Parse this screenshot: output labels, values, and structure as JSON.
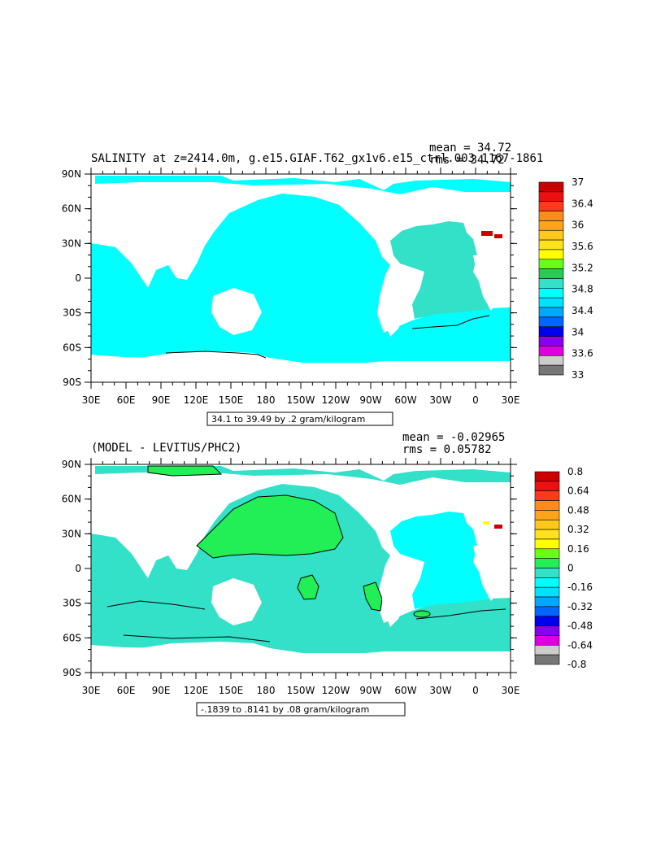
{
  "panels": [
    {
      "id": "top",
      "title": "SALINITY at z=2414.0m, g.e15.GIAF.T62_gx1v6.e15_ctrl.003 1167-1861",
      "mean": "mean = 34.72",
      "rms": "rms = 34.72",
      "info": "34.1 to 39.49 by .2 gram/kilogram",
      "ocean_color": "#00ffff",
      "atlantic_color": "#33e0c8",
      "colorbar": {
        "colors": [
          "#cc0000",
          "#ee1010",
          "#ff3a1a",
          "#ff8c1a",
          "#ffa31a",
          "#ffc81a",
          "#ffe21a",
          "#ffff00",
          "#66ff1a",
          "#22cc55",
          "#33e0c8",
          "#00ffff",
          "#00e0ff",
          "#00a8ff",
          "#0066ff",
          "#0000ee",
          "#8800ee",
          "#dd00dd",
          "#cccccc",
          "#777777"
        ],
        "labels": [
          "37",
          "36.4",
          "36",
          "35.6",
          "35.2",
          "34.8",
          "34.4",
          "34",
          "33.6",
          "33"
        ]
      }
    },
    {
      "id": "bottom",
      "title": "(MODEL - LEVITUS/PHC2)",
      "mean": "mean = -0.02965",
      "rms": "rms = 0.05782",
      "info": "-.1839 to .8141 by .08 gram/kilogram",
      "ocean_color": "#33e0c8",
      "atlantic_color": "#00ffff",
      "colorbar": {
        "colors": [
          "#cc0000",
          "#ee1010",
          "#ff3a1a",
          "#ff8c1a",
          "#ffa31a",
          "#ffc81a",
          "#ffe21a",
          "#ffff00",
          "#66ff1a",
          "#22ee55",
          "#33e0c8",
          "#00ffff",
          "#00e0ff",
          "#00a8ff",
          "#0066ff",
          "#0000ee",
          "#8800ee",
          "#dd00dd",
          "#cccccc",
          "#777777"
        ],
        "labels": [
          "0.8",
          "0.64",
          "0.48",
          "0.32",
          "0.16",
          "0",
          "-0.16",
          "-0.32",
          "-0.48",
          "-0.64",
          "-0.8"
        ]
      }
    }
  ],
  "axes": {
    "lat_labels": [
      "90N",
      "60N",
      "30N",
      "0",
      "30S",
      "60S",
      "90S"
    ],
    "lon_labels": [
      "30E",
      "60E",
      "90E",
      "120E",
      "150E",
      "180",
      "150W",
      "120W",
      "90W",
      "60W",
      "30W",
      "0",
      "30E"
    ]
  }
}
